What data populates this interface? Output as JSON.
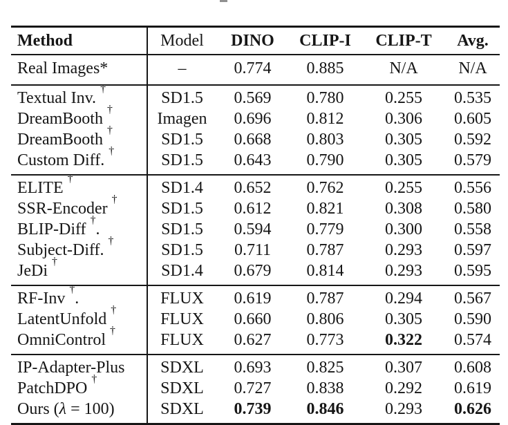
{
  "page": {
    "caption_fragment_color": "#909090",
    "text_color": "#161616",
    "background": "#ffffff"
  },
  "table": {
    "columns": {
      "method": "Method",
      "model": "Model",
      "dino": "DINO",
      "clip_i": "CLIP-I",
      "clip_t": "CLIP-T",
      "avg": "Avg."
    },
    "rows": [
      {
        "method": "Real Images*",
        "model": "–",
        "dino": "0.774",
        "clip_i": "0.885",
        "clip_t": "N/A",
        "avg": "N/A"
      },
      {
        "method": "Textual Inv. ",
        "sup": "†",
        "model": "SD1.5",
        "dino": "0.569",
        "clip_i": "0.780",
        "clip_t": "0.255",
        "avg": "0.535"
      },
      {
        "method": "DreamBooth ",
        "sup": "†",
        "model": "Imagen",
        "dino": "0.696",
        "clip_i": "0.812",
        "clip_t": "0.306",
        "avg": "0.605"
      },
      {
        "method": "DreamBooth ",
        "sup": "†",
        "model": "SD1.5",
        "dino": "0.668",
        "clip_i": "0.803",
        "clip_t": "0.305",
        "avg": "0.592"
      },
      {
        "method": "Custom Diff. ",
        "sup": "†",
        "model": "SD1.5",
        "dino": "0.643",
        "clip_i": "0.790",
        "clip_t": "0.305",
        "avg": "0.579"
      },
      {
        "method": "ELITE ",
        "sup": "†",
        "model": "SD1.4",
        "dino": "0.652",
        "clip_i": "0.762",
        "clip_t": "0.255",
        "avg": "0.556"
      },
      {
        "method": "SSR-Encoder ",
        "sup": "†",
        "model": "SD1.5",
        "dino": "0.612",
        "clip_i": "0.821",
        "clip_t": "0.308",
        "avg": "0.580"
      },
      {
        "method": "BLIP-Diff ",
        "sup": "†",
        "suffix": ".",
        "model": "SD1.5",
        "dino": "0.594",
        "clip_i": "0.779",
        "clip_t": "0.300",
        "avg": "0.558"
      },
      {
        "method": "Subject-Diff. ",
        "sup": "†",
        "model": "SD1.5",
        "dino": "0.711",
        "clip_i": "0.787",
        "clip_t": "0.293",
        "avg": "0.597"
      },
      {
        "method": "JeDi ",
        "sup": "†",
        "model": "SD1.4",
        "dino": "0.679",
        "clip_i": "0.814",
        "clip_t": "0.293",
        "avg": "0.595"
      },
      {
        "method": "RF-Inv ",
        "sup": "†",
        "suffix": ".",
        "model": "FLUX",
        "dino": "0.619",
        "clip_i": "0.787",
        "clip_t": "0.294",
        "avg": "0.567"
      },
      {
        "method": "LatentUnfold ",
        "sup": "†",
        "model": "FLUX",
        "dino": "0.660",
        "clip_i": "0.806",
        "clip_t": "0.305",
        "avg": "0.590"
      },
      {
        "method": "OmniControl ",
        "sup": "†",
        "model": "FLUX",
        "dino": "0.627",
        "clip_i": "0.773",
        "clip_t": "0.322",
        "avg": "0.574"
      },
      {
        "method": "IP-Adapter-Plus",
        "model": "SDXL",
        "dino": "0.693",
        "clip_i": "0.825",
        "clip_t": "0.307",
        "avg": "0.608"
      },
      {
        "method": "PatchDPO ",
        "sup": "†",
        "model": "SDXL",
        "dino": "0.727",
        "clip_i": "0.838",
        "clip_t": "0.292",
        "avg": "0.619"
      },
      {
        "method": "Ours (",
        "lambda": "λ",
        "suffix": " = 100)",
        "model": "SDXL",
        "dino": "0.739",
        "clip_i": "0.846",
        "clip_t": "0.293",
        "avg": "0.626"
      }
    ]
  }
}
